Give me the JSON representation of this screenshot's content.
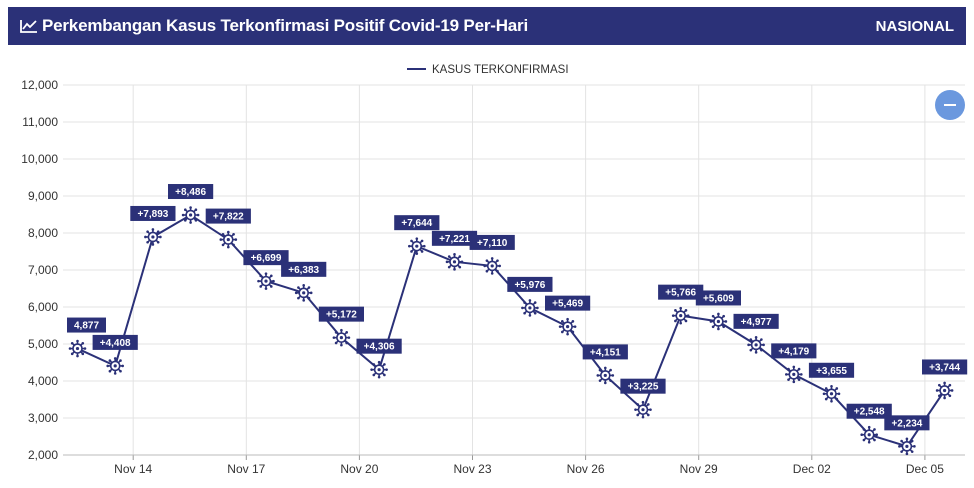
{
  "header": {
    "title": "Perkembangan Kasus Terkonfirmasi Positif Covid-19 Per-Hari",
    "scope": "NASIONAL",
    "icon": "line-chart-icon"
  },
  "controls": {
    "zoom_icon": "minus-icon"
  },
  "colors": {
    "header_bg": "#2b3178",
    "line": "#2b3178",
    "label_bg": "#2b3178",
    "grid": "#e3e3e3",
    "zoom_btn": "#6b98de"
  },
  "chart_data": {
    "type": "line",
    "title": "",
    "xlabel": "",
    "ylabel": "",
    "legend": "top-center",
    "grid": true,
    "ylim": [
      2000,
      12000
    ],
    "yticks": [
      "2,000",
      "3,000",
      "4,000",
      "5,000",
      "6,000",
      "7,000",
      "8,000",
      "9,000",
      "10,000",
      "11,000",
      "12,000"
    ],
    "xticks": [
      "Nov 14",
      "Nov 17",
      "Nov 20",
      "Nov 23",
      "Nov 26",
      "Nov 29",
      "Dec 02",
      "Dec 05"
    ],
    "x": [
      "Nov 13",
      "Nov 14",
      "Nov 15",
      "Nov 16",
      "Nov 17",
      "Nov 18",
      "Nov 19",
      "Nov 20",
      "Nov 21",
      "Nov 22",
      "Nov 23",
      "Nov 24",
      "Nov 25",
      "Nov 26",
      "Nov 27",
      "Nov 28",
      "Nov 29",
      "Nov 30",
      "Dec 01",
      "Dec 02",
      "Dec 03",
      "Dec 04",
      "Dec 05",
      "Dec 06"
    ],
    "series": [
      {
        "name": "KASUS TERKONFIRMASI",
        "values": [
          4877,
          4408,
          7893,
          8486,
          7822,
          6699,
          6383,
          5172,
          4306,
          7644,
          7221,
          7110,
          5976,
          5469,
          4151,
          3225,
          5766,
          5609,
          4977,
          4179,
          3655,
          2548,
          2234,
          3744
        ],
        "labels": [
          "4,877",
          "+4,408",
          "+7,893",
          "+8,486",
          "+7,822",
          "+6,699",
          "+6,383",
          "+5,172",
          "+4,306",
          "+7,644",
          "+7,221",
          "+7,110",
          "+5,976",
          "+5,469",
          "+4,151",
          "+3,225",
          "+5,766",
          "+5,609",
          "+4,977",
          "+4,179",
          "+3,655",
          "+2,548",
          "+2,234",
          "+3,744"
        ]
      }
    ]
  }
}
